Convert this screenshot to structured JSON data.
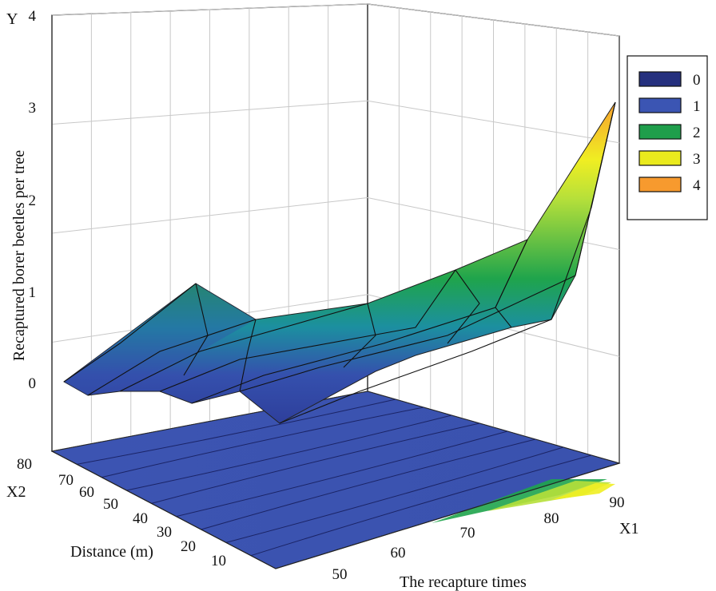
{
  "chart_data": {
    "type": "surface3d",
    "axes": {
      "y": {
        "label": "Y",
        "title": "Recaptured borer beetles per tree",
        "ticks": [
          "0",
          "1",
          "2",
          "3",
          "4"
        ],
        "range": [
          0,
          4
        ]
      },
      "x1": {
        "label": "X1",
        "title": "The recapture times",
        "ticks": [
          "50",
          "60",
          "70",
          "80",
          "90"
        ],
        "range": [
          45,
          90
        ]
      },
      "x2": {
        "label": "X2",
        "title": "Distance (m)",
        "ticks": [
          "10",
          "20",
          "30",
          "40",
          "50",
          "60",
          "70",
          "80"
        ],
        "range": [
          5,
          80
        ]
      }
    },
    "surface_profile": {
      "x1": [
        45,
        50,
        55,
        60,
        65,
        70,
        75,
        80,
        85,
        90
      ],
      "y": [
        0.0,
        0.05,
        0.2,
        0.15,
        0.35,
        0.55,
        0.8,
        1.1,
        1.8,
        3.1
      ]
    },
    "color_scale": [
      "#25307e",
      "#3b55b3",
      "#1f9e4b",
      "#eaea1d",
      "#f79a2e"
    ],
    "legend": {
      "items": [
        {
          "label": "0",
          "color": "#25307e"
        },
        {
          "label": "1",
          "color": "#3b55b3"
        },
        {
          "label": "2",
          "color": "#1f9e4b"
        },
        {
          "label": "3",
          "color": "#eaea1d"
        },
        {
          "label": "4",
          "color": "#f79a2e"
        }
      ]
    },
    "grid": true
  }
}
